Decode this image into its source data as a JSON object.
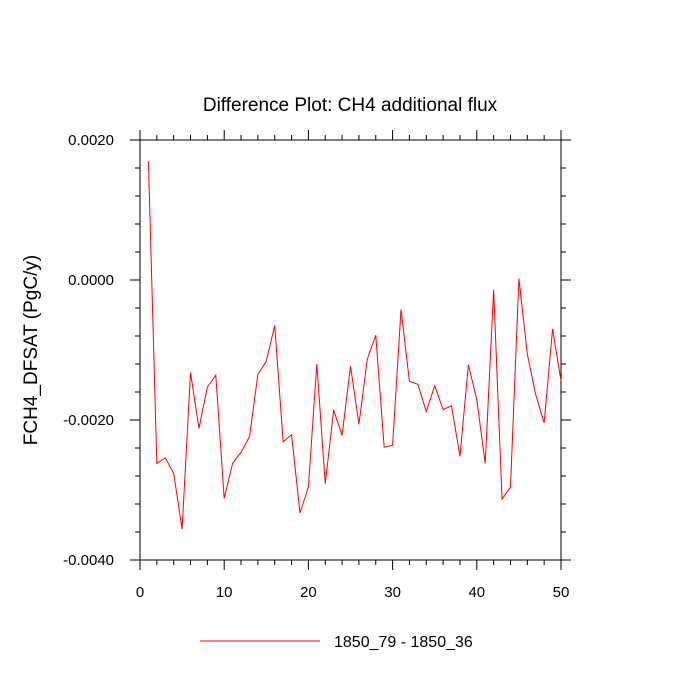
{
  "chart_data": {
    "type": "line",
    "title": "Difference Plot: CH4 additional flux",
    "xlabel": "",
    "ylabel": "FCH4_DFSAT  (PgC/y)",
    "xlim": [
      0,
      50
    ],
    "ylim": [
      -0.004,
      0.002
    ],
    "x_ticks": [
      0,
      10,
      20,
      30,
      40,
      50
    ],
    "x_tick_labels": [
      "0",
      "10",
      "20",
      "30",
      "40",
      "50"
    ],
    "y_ticks": [
      -0.004,
      -0.002,
      0.0,
      0.002
    ],
    "y_tick_labels": [
      "-0.0040",
      "-0.0020",
      "0.0000",
      "0.0020"
    ],
    "grid": false,
    "legend_position": "bottom-center",
    "series": [
      {
        "name": "1850_79 - 1850_36",
        "color": "#ff0000",
        "x": [
          1,
          2,
          3,
          4,
          5,
          6,
          7,
          8,
          9,
          10,
          11,
          12,
          13,
          14,
          15,
          16,
          17,
          18,
          19,
          20,
          21,
          22,
          23,
          24,
          25,
          26,
          27,
          28,
          29,
          30,
          31,
          32,
          33,
          34,
          35,
          36,
          37,
          38,
          39,
          40,
          41,
          42,
          43,
          44,
          45,
          46,
          47,
          48,
          49,
          50
        ],
        "y": [
          0.0017,
          -0.00262,
          -0.00254,
          -0.00276,
          -0.00356,
          -0.00132,
          -0.00212,
          -0.00153,
          -0.00136,
          -0.00312,
          -0.00262,
          -0.00246,
          -0.00224,
          -0.00135,
          -0.00116,
          -0.00065,
          -0.00231,
          -0.00221,
          -0.00333,
          -0.00296,
          -0.0012,
          -0.00291,
          -0.00186,
          -0.00222,
          -0.00123,
          -0.00206,
          -0.00113,
          -0.00079,
          -0.00239,
          -0.00236,
          -0.00042,
          -0.00145,
          -0.00149,
          -0.00188,
          -0.00151,
          -0.00185,
          -0.0018,
          -0.00252,
          -0.00121,
          -0.00171,
          -0.00262,
          -0.00014,
          -0.00313,
          -0.00296,
          2e-05,
          -0.00106,
          -0.00164,
          -0.00204,
          -0.0007,
          -0.00144
        ]
      }
    ]
  }
}
